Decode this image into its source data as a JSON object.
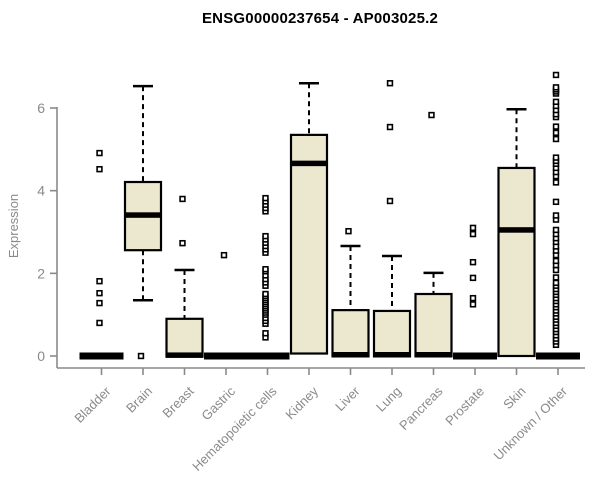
{
  "page": {
    "background": "#ffffff"
  },
  "chart_data": {
    "type": "boxplot",
    "title": "ENSG00000237654 - AP003025.2",
    "ylabel": "Expression",
    "xlabel": "",
    "yticks": [
      0,
      2,
      4,
      6
    ],
    "ylim": [
      0,
      7
    ],
    "grid": "off",
    "legend": "none",
    "axis_color": "#8a8a8a",
    "box_fill": "#ece8cf",
    "box_stroke": "#000000",
    "outlier_shape": "open-square",
    "categories": [
      "Bladder",
      "Brain",
      "Breast",
      "Gastric",
      "Hematopoietic cells",
      "Kidney",
      "Liver",
      "Lung",
      "Pancreas",
      "Prostate",
      "Skin",
      "Unknown / Other"
    ],
    "series": [
      {
        "category": "Bladder",
        "q1": 0,
        "median": 0,
        "q3": 0,
        "whisker_low": 0,
        "whisker_high": 0,
        "outliers": [
          0.8,
          1.28,
          1.52,
          1.81,
          4.52,
          4.91
        ]
      },
      {
        "category": "Brain",
        "q1": 2.56,
        "median": 3.41,
        "q3": 4.21,
        "whisker_low": 1.35,
        "whisker_high": 6.53,
        "outliers": [
          0
        ]
      },
      {
        "category": "Breast",
        "q1": 0,
        "median": 0.02,
        "q3": 0.9,
        "whisker_low": 0,
        "whisker_high": 2.08,
        "outliers": [
          2.73,
          3.8
        ]
      },
      {
        "category": "Gastric",
        "q1": 0,
        "median": 0,
        "q3": 0,
        "whisker_low": 0,
        "whisker_high": 0,
        "outliers": [
          2.44
        ]
      },
      {
        "category": "Hematopoietic cells",
        "q1": 0,
        "median": 0,
        "q3": 0,
        "whisker_low": 0,
        "whisker_high": 0,
        "outliers": [
          0.45,
          0.55,
          0.78,
          0.85,
          0.92,
          1.0,
          1.05,
          1.1,
          1.15,
          1.2,
          1.25,
          1.3,
          1.35,
          1.4,
          1.45,
          1.5,
          1.7,
          1.78,
          1.86,
          1.95,
          2.05,
          2.1,
          2.5,
          2.58,
          2.66,
          2.74,
          2.82,
          2.9,
          3.5,
          3.58,
          3.66,
          3.74,
          3.82
        ]
      },
      {
        "category": "Kidney",
        "q1": 0.06,
        "median": 4.66,
        "q3": 5.35,
        "whisker_low": 0.06,
        "whisker_high": 6.6,
        "outliers": []
      },
      {
        "category": "Liver",
        "q1": 0,
        "median": 0.03,
        "q3": 1.11,
        "whisker_low": 0,
        "whisker_high": 2.66,
        "outliers": [
          3.02
        ]
      },
      {
        "category": "Lung",
        "q1": 0,
        "median": 0.03,
        "q3": 1.09,
        "whisker_low": 0,
        "whisker_high": 2.42,
        "outliers": [
          3.75,
          5.54,
          6.6
        ]
      },
      {
        "category": "Pancreas",
        "q1": 0,
        "median": 0.03,
        "q3": 1.5,
        "whisker_low": 0,
        "whisker_high": 2.01,
        "outliers": [
          5.83
        ]
      },
      {
        "category": "Prostate",
        "q1": 0,
        "median": 0,
        "q3": 0,
        "whisker_low": 0,
        "whisker_high": 0,
        "outliers": [
          1.25,
          1.4,
          1.89,
          2.27,
          2.95,
          3.1
        ]
      },
      {
        "category": "Skin",
        "q1": 0,
        "median": 3.05,
        "q3": 4.55,
        "whisker_low": 0,
        "whisker_high": 5.97,
        "outliers": []
      },
      {
        "category": "Unknown / Other",
        "q1": 0,
        "median": 0,
        "q3": 0,
        "whisker_low": 0,
        "whisker_high": 0,
        "outliers": [
          0.27,
          0.35,
          0.42,
          0.5,
          0.58,
          0.65,
          0.73,
          0.8,
          0.88,
          0.95,
          1.03,
          1.1,
          1.18,
          1.25,
          1.33,
          1.4,
          1.48,
          1.55,
          1.62,
          1.7,
          1.77,
          1.9,
          2.08,
          2.2,
          2.3,
          2.44,
          2.55,
          2.65,
          2.76,
          2.85,
          2.95,
          3.05,
          3.3,
          3.4,
          3.73,
          4.2,
          4.35,
          4.45,
          4.55,
          4.65,
          4.72,
          4.8,
          5.25,
          5.4,
          5.55,
          5.78,
          5.85,
          5.95,
          6.05,
          6.15,
          6.35,
          6.4,
          6.45,
          6.5,
          6.8
        ]
      }
    ]
  }
}
